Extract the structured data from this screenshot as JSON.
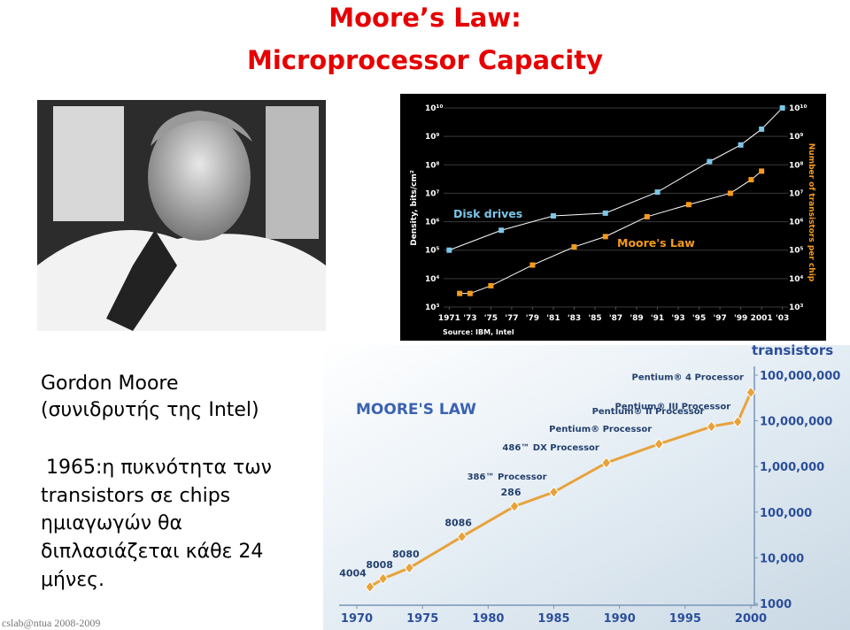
{
  "title": [
    "Moore’s Law:",
    "Microprocessor Capacity"
  ],
  "caption": [
    "Gordon Moore",
    "(συνιδρυτής της Intel)"
  ],
  "description": [
    "1965:η πυκνότητα των",
    "transistors σε chips",
    "ημιαγωγών θα",
    "διπλασιάζεται κάθε 24",
    "μήνες."
  ],
  "footer": "cslab@ntua 2008-2009",
  "chart_data": [
    {
      "type": "line",
      "log_y": true,
      "grid": true,
      "ylabel": "Density, bits/cm²",
      "y2label": "Number of transistors per chip",
      "source": "Source: IBM, Intel",
      "xlim": [
        1970.8,
        2003.2
      ],
      "xticks": [
        {
          "value": 1971,
          "label": "1971"
        },
        {
          "value": 1973,
          "label": "'73"
        },
        {
          "value": 1975,
          "label": "'75"
        },
        {
          "value": 1977,
          "label": "'77"
        },
        {
          "value": 1979,
          "label": "'79"
        },
        {
          "value": 1981,
          "label": "'81"
        },
        {
          "value": 1983,
          "label": "'83"
        },
        {
          "value": 1985,
          "label": "'85"
        },
        {
          "value": 1987,
          "label": "'87"
        },
        {
          "value": 1989,
          "label": "'89"
        },
        {
          "value": 1991,
          "label": "'91"
        },
        {
          "value": 1993,
          "label": "'93"
        },
        {
          "value": 1995,
          "label": "'95"
        },
        {
          "value": 1997,
          "label": "'97"
        },
        {
          "value": 1999,
          "label": "'99"
        },
        {
          "value": 2001,
          "label": "2001"
        },
        {
          "value": 2003,
          "label": "'03"
        }
      ],
      "ylim": [
        1000,
        10000000000
      ],
      "yticks": [
        {
          "value": 1000,
          "label": "10³"
        },
        {
          "value": 10000,
          "label": "10⁴"
        },
        {
          "value": 100000,
          "label": "10⁵"
        },
        {
          "value": 1000000,
          "label": "10⁶"
        },
        {
          "value": 10000000,
          "label": "10⁷"
        },
        {
          "value": 100000000,
          "label": "10⁸"
        },
        {
          "value": 1000000000,
          "label": "10⁹"
        },
        {
          "value": 10000000000,
          "label": "10¹⁰"
        }
      ],
      "series": [
        {
          "name": "Disk drives",
          "color": "#7cc6e8",
          "x": [
            1971,
            1976,
            1981,
            1986,
            1991,
            1996,
            1999,
            2001,
            2003
          ],
          "values": [
            100000,
            500000,
            1600000,
            2000000,
            11000000,
            130000000,
            500000000,
            1800000000,
            10000000000
          ]
        },
        {
          "name": "Moore's Law",
          "color": "#f59a1c",
          "x": [
            1972,
            1973,
            1975,
            1979,
            1983,
            1986,
            1990,
            1994,
            1998,
            2000,
            2001
          ],
          "values": [
            3000,
            3000,
            5600,
            30000,
            130000,
            300000,
            1500000,
            4000000,
            10000000,
            30000000,
            60000000
          ]
        }
      ]
    },
    {
      "type": "line",
      "log_y": true,
      "title": "MOORE'S LAW",
      "ylabel": "transistors",
      "xlim": [
        1970,
        2000
      ],
      "xticks": [
        1970,
        1975,
        1980,
        1985,
        1990,
        1995,
        2000
      ],
      "ylim": [
        1000,
        100000000
      ],
      "yticks": [
        1000,
        {
          "value": 10000,
          "label": "10,000"
        },
        {
          "value": 100000,
          "label": "100,000"
        },
        {
          "value": 1000000,
          "label": "1,000,000"
        },
        {
          "value": 10000000,
          "label": "10,000,000"
        },
        {
          "value": 100000000,
          "label": "100,000,000"
        }
      ],
      "color": "#e8a23a",
      "x": [
        1971,
        1972,
        1974,
        1978,
        1982,
        1985,
        1989,
        1993,
        1997,
        1999,
        2000
      ],
      "labels": [
        "4004",
        "8008",
        "8080",
        "8086",
        "286",
        "386™ Processor",
        "486™ DX Processor",
        "Pentium® Processor",
        "Pentium® II Processor",
        "Pentium® III Processor",
        "Pentium® 4 Processor"
      ],
      "values": [
        2300,
        3500,
        6000,
        29000,
        134000,
        275000,
        1200000,
        3100000,
        7500000,
        9500000,
        42000000
      ]
    }
  ]
}
